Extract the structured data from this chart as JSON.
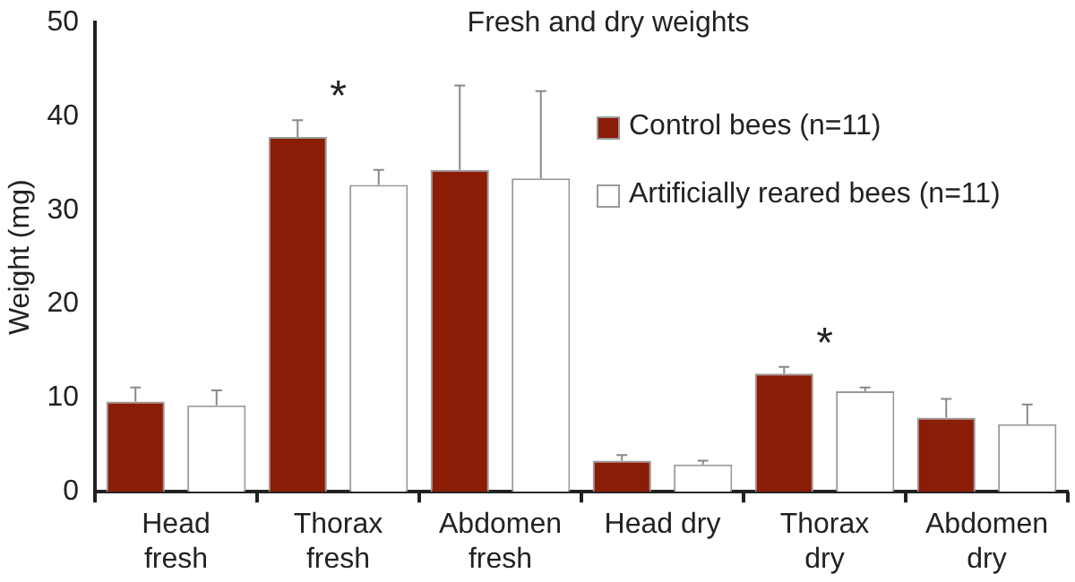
{
  "chart_data": {
    "type": "bar",
    "title": "Fresh and dry weights",
    "ylabel": "Weight (mg)",
    "categories": [
      "Head fresh",
      "Thorax fresh",
      "Abdomen fresh",
      "Head dry",
      "Thorax dry",
      "Abdomen dry"
    ],
    "series": [
      {
        "name": "Control bees (n=11)",
        "color": "#8b1c06",
        "values": [
          9.6,
          37.8,
          34.3,
          3.3,
          12.6,
          7.9
        ],
        "errors": [
          [
            9.6,
            11.1
          ],
          [
            37.8,
            39.6
          ],
          [
            34.3,
            43.3
          ],
          [
            3.3,
            3.9
          ],
          [
            12.6,
            13.3
          ],
          [
            7.9,
            9.9
          ]
        ]
      },
      {
        "name": "Artificially reared bees (n=11)",
        "color": "#ffffff",
        "values": [
          9.2,
          32.7,
          33.4,
          2.9,
          10.7,
          7.2
        ],
        "errors": [
          [
            9.2,
            10.8
          ],
          [
            32.7,
            34.3
          ],
          [
            33.4,
            42.7
          ],
          [
            2.9,
            3.3
          ],
          [
            10.7,
            11.1
          ],
          [
            7.2,
            9.3
          ]
        ]
      }
    ],
    "ylim": [
      0,
      50
    ],
    "yticks": [
      0,
      10,
      20,
      30,
      40,
      50
    ],
    "grid": false,
    "legend": "top right",
    "annotations": [
      "*",
      "*"
    ]
  }
}
